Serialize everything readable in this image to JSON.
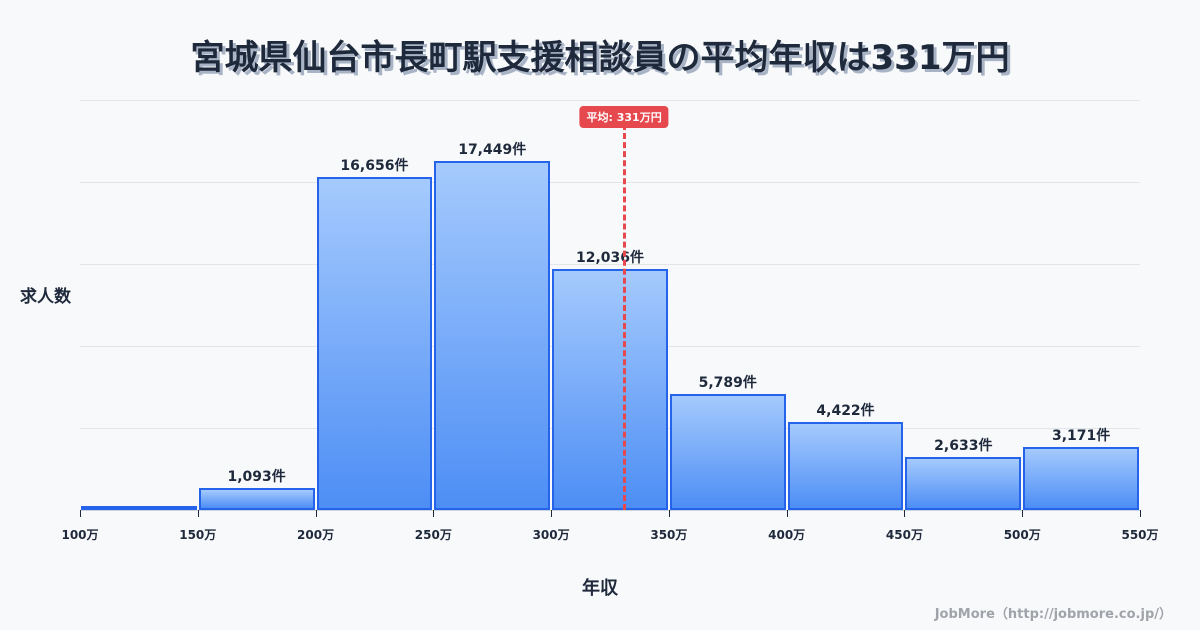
{
  "title": "宮城県仙台市長町駅支援相談員の平均年収は331万円",
  "chart_data": {
    "type": "bar",
    "title": "宮城県仙台市長町駅支援相談員の平均年収は331万円",
    "xlabel": "年収",
    "ylabel": "求人数",
    "categories": [
      "100-150万",
      "150-200万",
      "200-250万",
      "250-300万",
      "300-350万",
      "350-400万",
      "400-450万",
      "450-500万",
      "500-550万"
    ],
    "bin_edges": [
      "100万",
      "150万",
      "200万",
      "250万",
      "300万",
      "350万",
      "400万",
      "450万",
      "500万",
      "550万"
    ],
    "values": [
      30,
      1093,
      16656,
      17449,
      12036,
      5789,
      4422,
      2633,
      3171
    ],
    "value_labels": [
      "",
      "1,093件",
      "16,656件",
      "17,449件",
      "12,036件",
      "5,789件",
      "4,422件",
      "2,633件",
      "3,171件"
    ],
    "ylim": [
      0,
      20500
    ],
    "grid": true,
    "annotations": [
      {
        "type": "vline",
        "x": 331,
        "label": "平均: 331万円",
        "color": "#e5484d"
      }
    ],
    "bar_color": "#4d8ef5",
    "bar_border": "#2563eb"
  },
  "avg_badge": "平均: 331万円",
  "ylabel": "求人数",
  "xlabel": "年収",
  "credit": "JobMore（http://jobmore.co.jp/）"
}
